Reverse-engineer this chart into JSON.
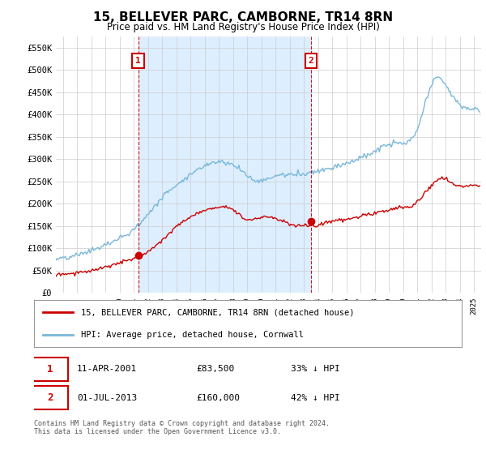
{
  "title": "15, BELLEVER PARC, CAMBORNE, TR14 8RN",
  "subtitle": "Price paid vs. HM Land Registry's House Price Index (HPI)",
  "xlim_start": 1995.5,
  "xlim_end": 2025.5,
  "ylim_bottom": 0,
  "ylim_top": 575000,
  "yticks": [
    0,
    50000,
    100000,
    150000,
    200000,
    250000,
    300000,
    350000,
    400000,
    450000,
    500000,
    550000
  ],
  "ytick_labels": [
    "£0",
    "£50K",
    "£100K",
    "£150K",
    "£200K",
    "£250K",
    "£300K",
    "£350K",
    "£400K",
    "£450K",
    "£500K",
    "£550K"
  ],
  "hpi_color": "#7ab8d9",
  "price_color": "#cc0000",
  "purchase1_date": 2001.3,
  "purchase1_price": 83500,
  "purchase1_label": "1",
  "purchase2_date": 2013.5,
  "purchase2_price": 160000,
  "purchase2_label": "2",
  "legend_line1": "15, BELLEVER PARC, CAMBORNE, TR14 8RN (detached house)",
  "legend_line2": "HPI: Average price, detached house, Cornwall",
  "note1_num": "1",
  "note1_date": "11-APR-2001",
  "note1_price": "£83,500",
  "note1_hpi": "33% ↓ HPI",
  "note2_num": "2",
  "note2_date": "01-JUL-2013",
  "note2_price": "£160,000",
  "note2_hpi": "42% ↓ HPI",
  "footer": "Contains HM Land Registry data © Crown copyright and database right 2024.\nThis data is licensed under the Open Government Licence v3.0.",
  "bg_color": "#ffffff",
  "grid_color": "#cccccc",
  "shade_color": "#ddeeff"
}
